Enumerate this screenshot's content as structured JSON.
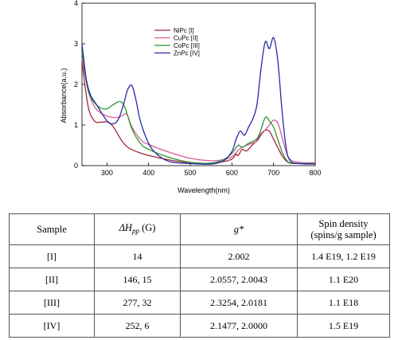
{
  "chart_data": {
    "type": "line",
    "title": "",
    "xlabel": "Wavelength(nm)",
    "ylabel": "Absorbance(a.u.)",
    "xlim": [
      240,
      800
    ],
    "ylim": [
      0,
      4
    ],
    "xticks": [
      300,
      400,
      500,
      600,
      700,
      800
    ],
    "yticks": [
      0,
      1,
      2,
      3,
      4
    ],
    "grid": false,
    "legend_position": "top-center",
    "series": [
      {
        "name": "NiPc [I]",
        "color": "#a0283a",
        "x": [
          240,
          255,
          270,
          285,
          300,
          310,
          320,
          335,
          350,
          370,
          400,
          450,
          500,
          550,
          580,
          600,
          610,
          615,
          625,
          635,
          650,
          660,
          670,
          680,
          690,
          700,
          710,
          720,
          730,
          740,
          760,
          800
        ],
        "y": [
          2.55,
          1.45,
          1.1,
          1.07,
          1.08,
          1.02,
          0.88,
          0.62,
          0.45,
          0.35,
          0.25,
          0.14,
          0.07,
          0.06,
          0.1,
          0.16,
          0.28,
          0.25,
          0.4,
          0.36,
          0.52,
          0.62,
          0.78,
          0.87,
          0.85,
          0.65,
          0.45,
          0.25,
          0.12,
          0.06,
          0.05,
          0.05
        ]
      },
      {
        "name": "CuPc [II]",
        "color": "#d65c9c",
        "x": [
          240,
          255,
          270,
          285,
          300,
          320,
          335,
          345,
          350,
          360,
          380,
          400,
          450,
          500,
          550,
          580,
          600,
          620,
          640,
          660,
          670,
          680,
          690,
          700,
          710,
          720,
          730,
          740,
          760,
          800
        ],
        "y": [
          2.65,
          1.85,
          1.45,
          1.3,
          1.22,
          1.18,
          1.22,
          1.28,
          1.22,
          0.95,
          0.65,
          0.52,
          0.33,
          0.18,
          0.12,
          0.15,
          0.22,
          0.42,
          0.52,
          0.6,
          0.75,
          0.88,
          1.0,
          1.12,
          1.05,
          0.72,
          0.35,
          0.15,
          0.08,
          0.07
        ]
      },
      {
        "name": "CoPc [III]",
        "color": "#2b962b",
        "x": [
          240,
          255,
          270,
          285,
          300,
          315,
          330,
          340,
          350,
          360,
          380,
          400,
          450,
          500,
          550,
          580,
          600,
          615,
          625,
          640,
          655,
          665,
          680,
          690,
          700,
          710,
          720,
          730,
          740,
          760,
          800
        ],
        "y": [
          2.8,
          1.85,
          1.55,
          1.42,
          1.4,
          1.5,
          1.58,
          1.5,
          1.22,
          0.9,
          0.55,
          0.4,
          0.2,
          0.08,
          0.06,
          0.15,
          0.3,
          0.5,
          0.45,
          0.55,
          0.62,
          0.75,
          1.18,
          1.1,
          0.95,
          0.65,
          0.35,
          0.15,
          0.07,
          0.05,
          0.05
        ]
      },
      {
        "name": "ZnPc [IV]",
        "color": "#2828a8",
        "x": [
          240,
          250,
          260,
          275,
          290,
          305,
          320,
          330,
          340,
          350,
          360,
          370,
          380,
          400,
          420,
          450,
          500,
          550,
          580,
          600,
          610,
          620,
          630,
          640,
          650,
          660,
          670,
          680,
          690,
          700,
          710,
          720,
          730,
          740,
          760,
          800
        ],
        "y": [
          3.0,
          2.15,
          1.75,
          1.5,
          1.25,
          1.05,
          1.05,
          1.2,
          1.52,
          1.88,
          1.97,
          1.6,
          1.1,
          0.55,
          0.28,
          0.1,
          0.05,
          0.04,
          0.12,
          0.35,
          0.65,
          0.85,
          0.75,
          0.95,
          1.15,
          1.5,
          2.4,
          3.05,
          2.88,
          3.15,
          2.6,
          1.4,
          0.45,
          0.12,
          0.05,
          0.04
        ]
      }
    ]
  },
  "table": {
    "headers": {
      "sample": "Sample",
      "dhpp": "ΔH",
      "dhpp_sub": "pp",
      "dhpp_unit": " (G)",
      "g": "g*",
      "spin_line1": "Spin density",
      "spin_line2": "(spins/g sample)"
    },
    "rows": [
      {
        "sample": "[I]",
        "dhpp": "14",
        "g": "2.002",
        "spin": "1.4 E19, 1.2 E19"
      },
      {
        "sample": "[II]",
        "dhpp": "146, 15",
        "g": "2.0557, 2.0043",
        "spin": "1.1 E20"
      },
      {
        "sample": "[III]",
        "dhpp": "277, 32",
        "g": "2.3254, 2.0181",
        "spin": "1.1 E18"
      },
      {
        "sample": "[IV]",
        "dhpp": "252, 6",
        "g": "2.1477, 2.0000",
        "spin": "1.5 E19"
      }
    ]
  }
}
